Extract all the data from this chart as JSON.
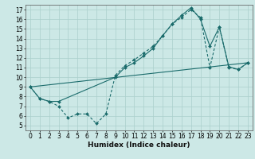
{
  "bg_color": "#cce8e6",
  "grid_color": "#aacfcc",
  "line_color": "#1a6b6b",
  "xlabel": "Humidex (Indice chaleur)",
  "xlabel_fontsize": 6.5,
  "tick_fontsize": 5.5,
  "xlim": [
    -0.5,
    23.5
  ],
  "ylim": [
    4.5,
    17.5
  ],
  "xticks": [
    0,
    1,
    2,
    3,
    4,
    5,
    6,
    7,
    8,
    9,
    10,
    11,
    12,
    13,
    14,
    15,
    16,
    17,
    18,
    19,
    20,
    21,
    22,
    23
  ],
  "yticks": [
    5,
    6,
    7,
    8,
    9,
    10,
    11,
    12,
    13,
    14,
    15,
    16,
    17
  ],
  "series1_x": [
    0,
    1,
    2,
    3,
    4,
    5,
    6,
    7,
    8,
    9,
    10,
    11,
    12,
    13,
    14,
    15,
    16,
    17,
    18,
    19,
    20,
    21,
    22,
    23
  ],
  "series1_y": [
    9.0,
    7.8,
    7.5,
    7.0,
    5.8,
    6.2,
    6.2,
    5.2,
    6.2,
    10.2,
    11.2,
    11.8,
    12.5,
    13.2,
    14.3,
    15.5,
    16.2,
    17.0,
    16.2,
    11.0,
    15.2,
    11.0,
    10.8,
    11.5
  ],
  "series2_x": [
    0,
    1,
    2,
    3,
    9,
    10,
    11,
    12,
    13,
    14,
    15,
    16,
    17,
    18,
    19,
    20,
    21,
    22,
    23
  ],
  "series2_y": [
    9.0,
    7.8,
    7.5,
    7.5,
    10.0,
    11.0,
    11.5,
    12.2,
    13.0,
    14.3,
    15.5,
    16.4,
    17.2,
    16.0,
    13.2,
    15.2,
    11.1,
    10.8,
    11.5
  ],
  "series3_x": [
    0,
    23
  ],
  "series3_y": [
    9.0,
    11.5
  ]
}
